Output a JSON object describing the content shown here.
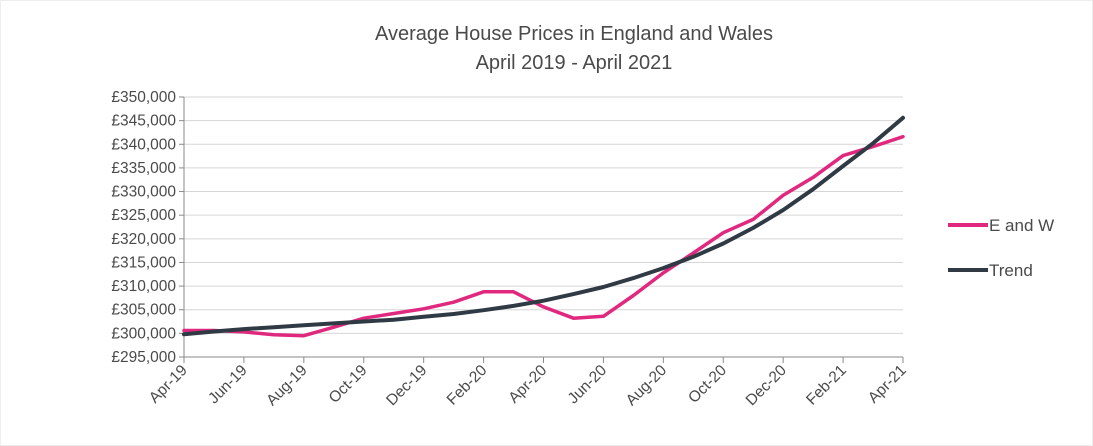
{
  "chart_data": {
    "type": "line",
    "title": "Average House Prices in England and Wales",
    "subtitle": "April 2019 - April 2021",
    "xlabel": "",
    "ylabel": "",
    "x_tick_labels": [
      "Apr-19",
      "Jun-19",
      "Aug-19",
      "Oct-19",
      "Dec-19",
      "Feb-20",
      "Apr-20",
      "Jun-20",
      "Aug-20",
      "Oct-20",
      "Dec-20",
      "Feb-21",
      "Apr-21"
    ],
    "y_tick_labels": [
      "£350,000",
      "£345,000",
      "£340,000",
      "£335,000",
      "£330,000",
      "£325,000",
      "£320,000",
      "£315,000",
      "£310,000",
      "£305,000",
      "£300,000",
      "£295,000"
    ],
    "ylim": [
      295000,
      350000
    ],
    "months": [
      "Apr-19",
      "May-19",
      "Jun-19",
      "Jul-19",
      "Aug-19",
      "Sep-19",
      "Oct-19",
      "Nov-19",
      "Dec-19",
      "Jan-20",
      "Feb-20",
      "Mar-20",
      "Apr-20",
      "May-20",
      "Jun-20",
      "Jul-20",
      "Aug-20",
      "Sep-20",
      "Oct-20",
      "Nov-20",
      "Dec-20",
      "Jan-21",
      "Feb-21",
      "Mar-21",
      "Apr-21"
    ],
    "series": [
      {
        "name": "E and W",
        "color": "#e0297e",
        "values": [
          300600,
          300600,
          300300,
          299700,
          299500,
          301300,
          303200,
          304200,
          305200,
          306600,
          308800,
          308800,
          305600,
          303200,
          303600,
          308000,
          312800,
          317000,
          321300,
          324100,
          329200,
          333000,
          337600,
          339500,
          341600
        ]
      },
      {
        "name": "Trend",
        "color": "#2f3a45",
        "values": [
          299800,
          300400,
          300900,
          301300,
          301700,
          302100,
          302500,
          302900,
          303500,
          304100,
          304900,
          305800,
          306900,
          308300,
          309800,
          311700,
          313800,
          316200,
          319000,
          322300,
          326100,
          330500,
          335400,
          340200,
          345600
        ]
      }
    ],
    "grid": true,
    "legend_position": "right"
  }
}
